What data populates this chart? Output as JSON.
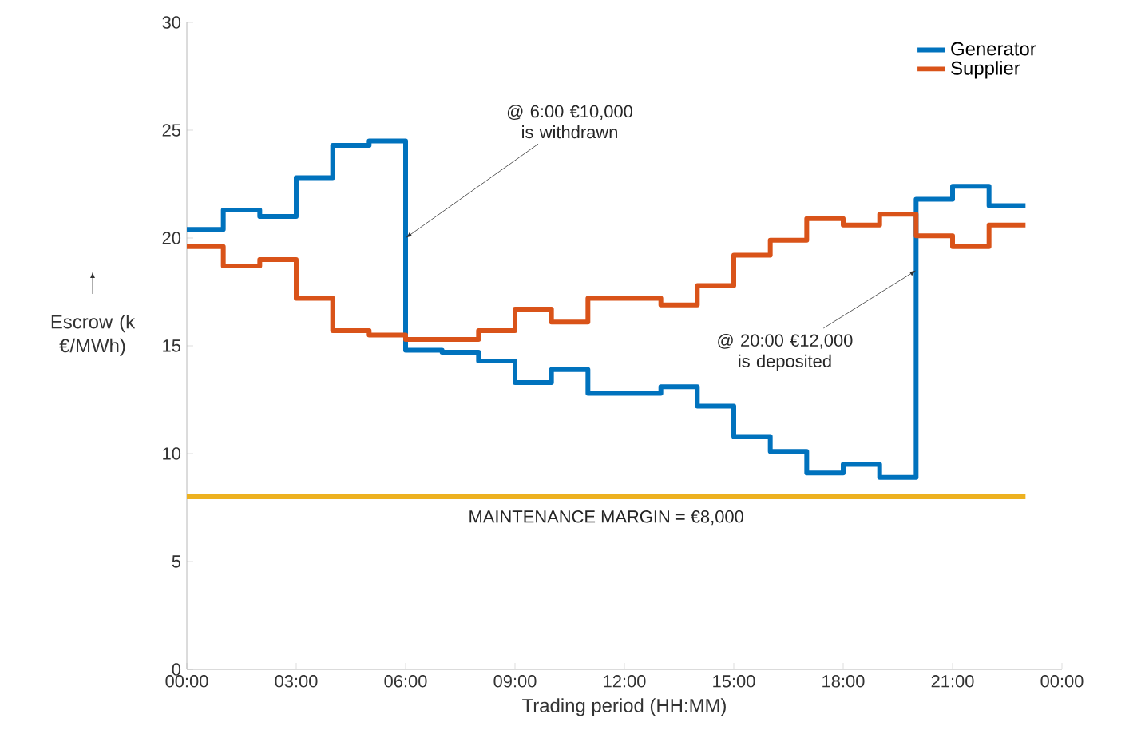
{
  "chart_data": {
    "type": "step",
    "xlabel": "Trading period (HH:MM)",
    "ylabel": "Escrow (k €/MWh)",
    "x": [
      0,
      1,
      2,
      3,
      4,
      5,
      6,
      7,
      8,
      9,
      10,
      11,
      12,
      13,
      14,
      15,
      16,
      17,
      18,
      19,
      20,
      21,
      22,
      23
    ],
    "series": [
      {
        "name": "Generator",
        "color": "#0072bd",
        "values": [
          20.4,
          21.3,
          21.0,
          22.8,
          24.3,
          24.5,
          14.8,
          14.7,
          14.3,
          13.3,
          13.9,
          12.8,
          12.8,
          13.1,
          12.2,
          10.8,
          10.1,
          9.1,
          9.5,
          8.9,
          21.8,
          22.4,
          21.5,
          21.5
        ]
      },
      {
        "name": "Supplier",
        "color": "#d95319",
        "values": [
          19.6,
          18.7,
          19.0,
          17.2,
          15.7,
          15.5,
          15.3,
          15.3,
          15.7,
          16.7,
          16.1,
          17.2,
          17.2,
          16.9,
          17.8,
          19.2,
          19.9,
          20.9,
          20.6,
          21.1,
          20.1,
          19.6,
          20.6,
          20.6
        ]
      }
    ],
    "xlim": [
      0,
      24
    ],
    "xticks": [
      {
        "value": 0,
        "label": "00:00"
      },
      {
        "value": 3,
        "label": "03:00"
      },
      {
        "value": 6,
        "label": "06:00"
      },
      {
        "value": 9,
        "label": "09:00"
      },
      {
        "value": 12,
        "label": "12:00"
      },
      {
        "value": 15,
        "label": "15:00"
      },
      {
        "value": 18,
        "label": "18:00"
      },
      {
        "value": 21,
        "label": "21:00"
      },
      {
        "value": 24,
        "label": "00:00"
      }
    ],
    "ylim": [
      0,
      30
    ],
    "yticks": [
      0,
      5,
      10,
      15,
      20,
      25,
      30
    ],
    "ref_lines": [
      {
        "axis": "y",
        "value": 8,
        "label": "MAINTENANCE MARGIN = €8,000",
        "color": "#edb120"
      }
    ],
    "annotations": [
      {
        "text": "@ 6:00 €10,000 is withdrawn",
        "x": 6,
        "y": 20
      },
      {
        "text": "@ 20:00 €12,000 is deposited",
        "x": 20,
        "y": 18.5
      }
    ],
    "legend": "top right",
    "grid": false,
    "line_style": "solid",
    "marker": "none"
  }
}
